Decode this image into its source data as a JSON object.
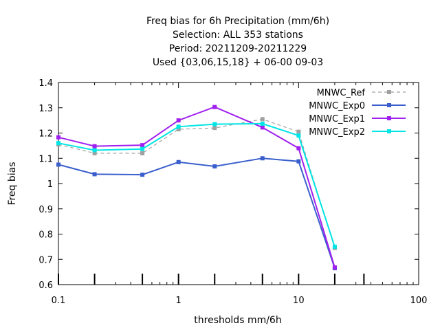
{
  "chart_data": {
    "type": "line",
    "title_lines": [
      "Freq bias  for 6h Precipitation (mm/6h)",
      "Selection: ALL    353 stations",
      "Period: 20211209-20211229",
      "Used {03,06,15,18} + 06-00 09-03"
    ],
    "xlabel": "thresholds mm/6h",
    "ylabel": "Freq bias",
    "x_scale": "log",
    "xlim": [
      0.1,
      100
    ],
    "ylim": [
      0.6,
      1.4
    ],
    "x_ticks": [
      0.1,
      1,
      10,
      100
    ],
    "x_tick_labels": [
      "0.1",
      "1",
      "10",
      "100"
    ],
    "y_ticks": [
      0.6,
      0.7,
      0.8,
      0.9,
      1.0,
      1.1,
      1.2,
      1.3,
      1.4
    ],
    "y_tick_labels": [
      "0.6",
      "0.7",
      "0.8",
      "0.9",
      "1",
      "1.1",
      "1.2",
      "1.3",
      "1.4"
    ],
    "threshold_markers": [
      0.1,
      0.2,
      0.5,
      1,
      2,
      5,
      10,
      20,
      35
    ],
    "legend_position": "top-right",
    "grid": false,
    "x": [
      0.1,
      0.2,
      0.5,
      1,
      2,
      5,
      10,
      20
    ],
    "series": [
      {
        "name": "MNWC_Ref",
        "color": "#a0a0a0",
        "dashed": true,
        "values": [
          1.155,
          1.12,
          1.12,
          1.215,
          1.22,
          1.255,
          1.205,
          0.745
        ]
      },
      {
        "name": "MNWC_Exp0",
        "color": "#3a5fcd",
        "dashed": false,
        "values": [
          1.075,
          1.037,
          1.035,
          1.085,
          1.068,
          1.1,
          1.088,
          0.665
        ]
      },
      {
        "name": "MNWC_Exp1",
        "color": "#a020f0",
        "dashed": false,
        "values": [
          1.183,
          1.148,
          1.152,
          1.25,
          1.303,
          1.222,
          1.14,
          0.668
        ]
      },
      {
        "name": "MNWC_Exp2",
        "color": "#00e5e5",
        "dashed": false,
        "values": [
          1.16,
          1.132,
          1.137,
          1.225,
          1.235,
          1.237,
          1.19,
          0.75
        ]
      }
    ]
  }
}
